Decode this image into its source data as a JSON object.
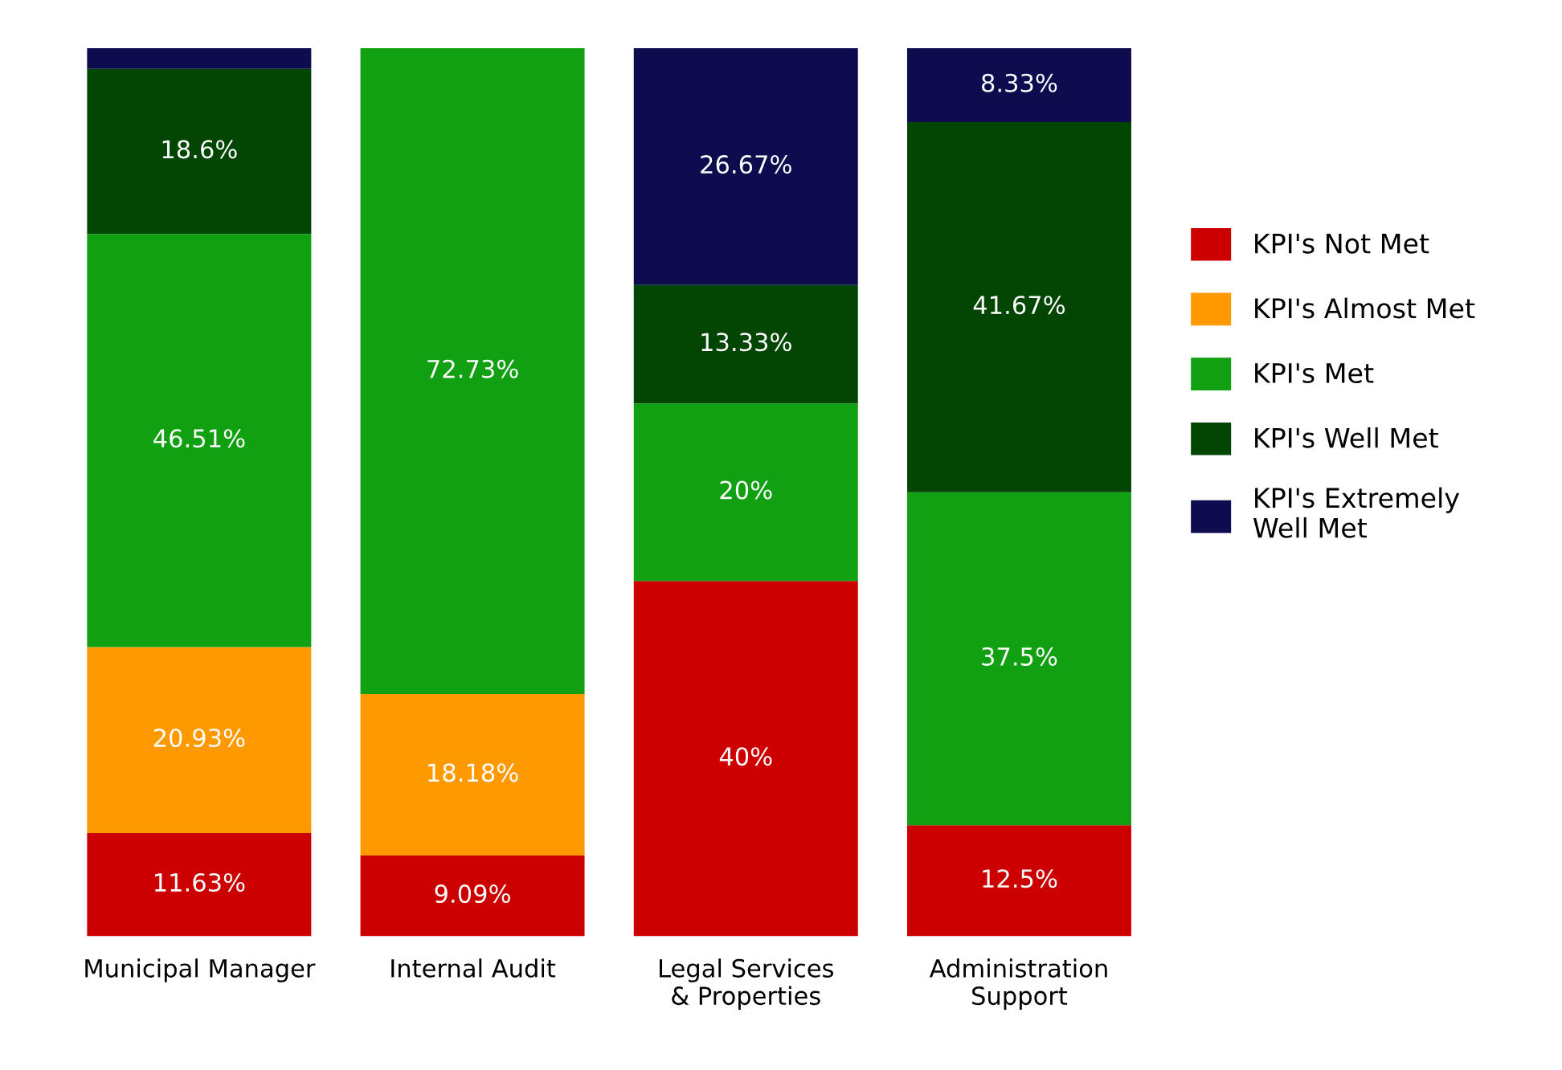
{
  "chart_data": {
    "type": "bar",
    "stacked": true,
    "ylim": [
      0,
      100
    ],
    "tick_labels": "x",
    "legend": "right",
    "grid": false,
    "categories": [
      "Municipal Manager",
      "Internal Audit",
      "Legal Services & Properties",
      "Administration Support"
    ],
    "series": [
      {
        "name": "KPI's Not Met",
        "color": "#cc0000",
        "values": [
          11.63,
          9.09,
          40,
          12.5
        ],
        "value_labels": [
          "11.63%",
          "9.09%",
          "40%",
          "12.5%"
        ]
      },
      {
        "name": "KPI's Almost Met",
        "color": "#ff9900",
        "values": [
          20.93,
          18.18,
          null,
          null
        ],
        "value_labels": [
          "20.93%",
          "18.18%",
          null,
          null
        ]
      },
      {
        "name": "KPI's Met",
        "color": "#11a011",
        "values": [
          46.51,
          72.73,
          20,
          37.5
        ],
        "value_labels": [
          "46.51%",
          "72.73%",
          "20%",
          "37.5%"
        ]
      },
      {
        "name": "KPI's Well Met",
        "color": "#034503",
        "values": [
          18.6,
          null,
          13.33,
          41.67
        ],
        "value_labels": [
          "18.6%",
          null,
          "13.33%",
          "41.67%"
        ]
      },
      {
        "name": "KPI's Extremely Well Met",
        "color": "#0c0c4e",
        "values": [
          2.33,
          null,
          26.67,
          8.33
        ],
        "value_labels": [
          null,
          null,
          "26.67%",
          "8.33%"
        ]
      }
    ]
  }
}
